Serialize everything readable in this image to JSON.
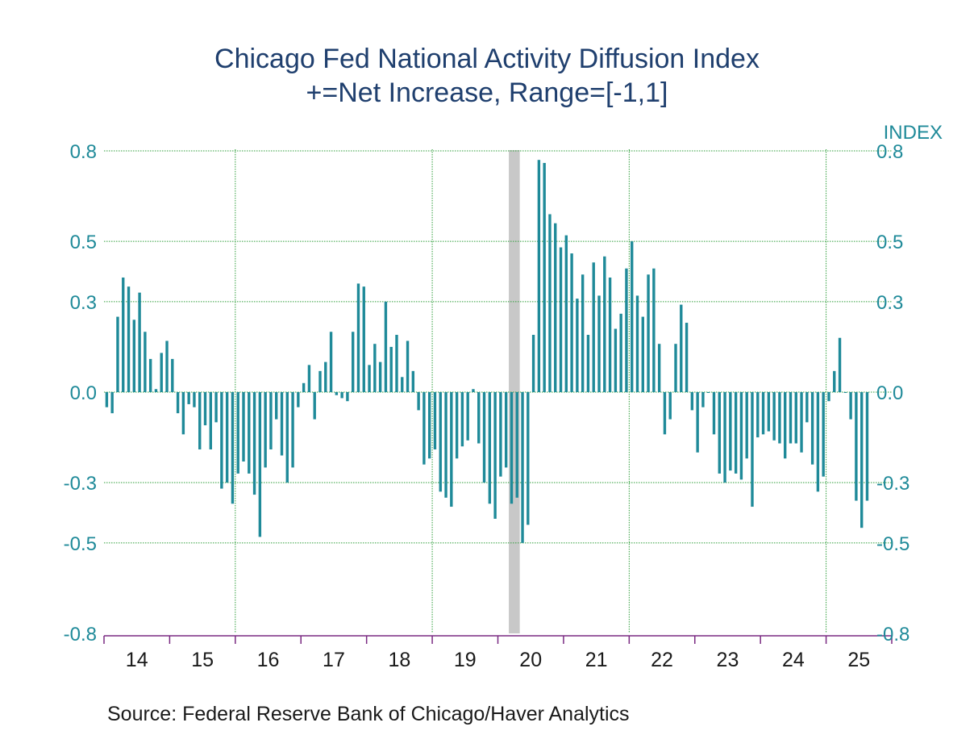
{
  "chart_data": {
    "type": "bar",
    "title": "Chicago Fed National Activity Diffusion Index",
    "subtitle": "+=Net Increase, Range=[-1,1]",
    "ylabel_right": "INDEX",
    "source": "Source:  Federal Reserve Bank of Chicago/Haver Analytics",
    "ylim": [
      -0.8,
      0.8
    ],
    "y_ticks": [
      "0.8",
      "0.5",
      "0.3",
      "0.0",
      "-0.3",
      "-0.5",
      "-0.8"
    ],
    "y_tick_values": [
      0.8,
      0.5,
      0.3,
      0.0,
      -0.3,
      -0.5,
      -0.8
    ],
    "x_tick_labels": [
      "14",
      "15",
      "16",
      "17",
      "18",
      "19",
      "20",
      "21",
      "22",
      "23",
      "24",
      "25"
    ],
    "frequency": "monthly",
    "start": "2014-01",
    "recession_shading": [
      "2020-03",
      "2020-04"
    ],
    "grid": "dotted vertical every 3 years, horizontal at each y tick",
    "colors": {
      "bars": "#1f8a99",
      "grid": "#2e9e3a",
      "axis": "#7a2a82",
      "recession": "#c8c8c8",
      "title": "#1f3f6e",
      "tick_labels": "#1f8a99"
    },
    "values": [
      -0.05,
      -0.07,
      0.25,
      0.38,
      0.35,
      0.24,
      0.33,
      0.2,
      0.11,
      0.01,
      0.13,
      0.17,
      0.11,
      -0.07,
      -0.14,
      -0.04,
      -0.05,
      -0.19,
      -0.11,
      -0.19,
      -0.1,
      -0.32,
      -0.3,
      -0.37,
      -0.27,
      -0.23,
      -0.27,
      -0.34,
      -0.48,
      -0.25,
      -0.19,
      -0.09,
      -0.21,
      -0.3,
      -0.25,
      -0.05,
      0.03,
      0.09,
      -0.09,
      0.07,
      0.1,
      0.2,
      -0.01,
      -0.02,
      -0.03,
      0.2,
      0.36,
      0.35,
      0.09,
      0.16,
      0.1,
      0.3,
      0.15,
      0.19,
      0.05,
      0.17,
      0.07,
      -0.06,
      -0.24,
      -0.22,
      -0.19,
      -0.33,
      -0.35,
      -0.38,
      -0.22,
      -0.18,
      -0.16,
      0.01,
      -0.17,
      -0.3,
      -0.37,
      -0.42,
      -0.28,
      -0.25,
      -0.37,
      -0.35,
      -0.5,
      -0.44,
      0.19,
      0.77,
      0.76,
      0.59,
      0.56,
      0.48,
      0.52,
      0.46,
      0.31,
      0.39,
      0.19,
      0.43,
      0.32,
      0.45,
      0.38,
      0.21,
      0.26,
      0.41,
      0.5,
      0.32,
      0.25,
      0.39,
      0.41,
      0.16,
      -0.14,
      -0.09,
      0.16,
      0.29,
      0.23,
      -0.06,
      -0.2,
      -0.05,
      0.0,
      -0.14,
      -0.27,
      -0.3,
      -0.26,
      -0.27,
      -0.29,
      -0.22,
      -0.38,
      -0.15,
      -0.14,
      -0.13,
      -0.16,
      -0.17,
      -0.22,
      -0.17,
      -0.17,
      -0.2,
      -0.1,
      -0.24,
      -0.33,
      -0.28,
      -0.03,
      0.07,
      0.18,
      0.0,
      -0.09,
      -0.36,
      -0.45,
      -0.36
    ]
  }
}
